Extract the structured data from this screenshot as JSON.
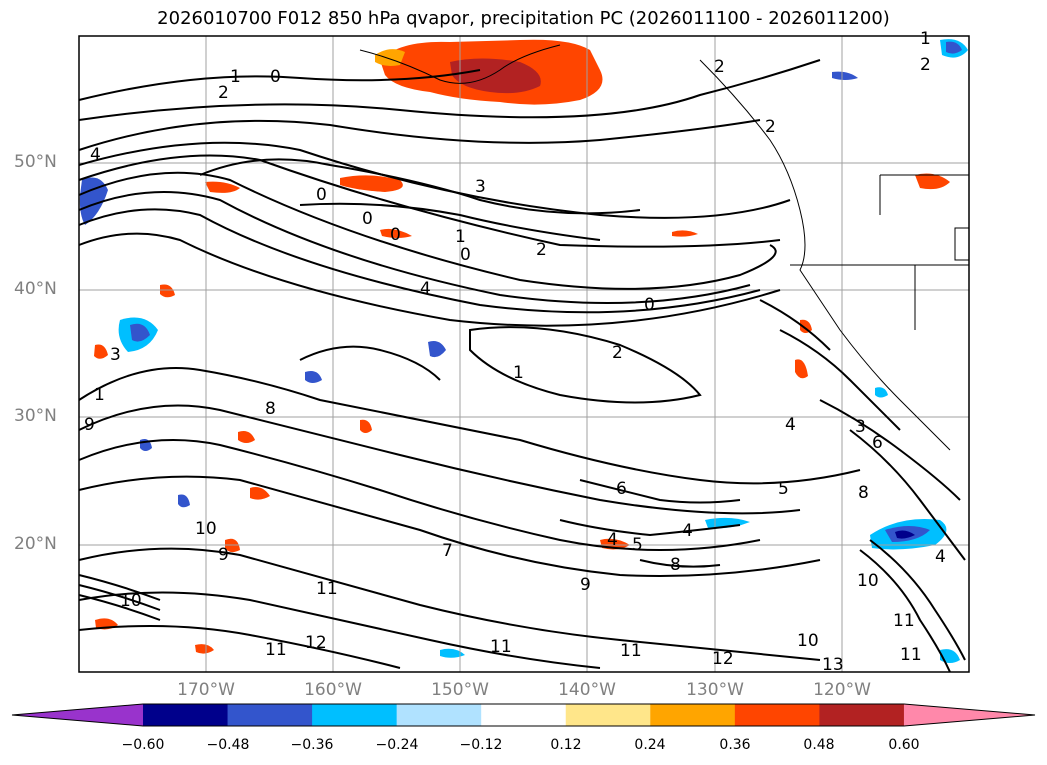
{
  "title": "2026010700 F012 850 hPa qvapor, precipitation PC (2026011100 - 2026011200)",
  "map": {
    "lat_labels": [
      "50°N",
      "40°N",
      "30°N",
      "20°N"
    ],
    "lon_labels": [
      "170°W",
      "160°W",
      "150°W",
      "140°W",
      "130°W",
      "120°W"
    ],
    "extent": {
      "lon_min": -179,
      "lon_max": -109,
      "lat_min": 10,
      "lat_max": 60
    },
    "contour_labels": [
      "0",
      "1",
      "2",
      "3",
      "4",
      "5",
      "6",
      "7",
      "8",
      "9",
      "10",
      "11",
      "12",
      "13"
    ]
  },
  "colorbar": {
    "ticks": [
      "−0.60",
      "−0.48",
      "−0.36",
      "−0.24",
      "−0.12",
      "0.12",
      "0.24",
      "0.36",
      "0.48",
      "0.60"
    ],
    "colors": [
      "#9933cc",
      "#00008b",
      "#3355cc",
      "#00bfff",
      "#b0e2ff",
      "#ffffff",
      "#ffe68a",
      "#ffa500",
      "#ff4500",
      "#b22222",
      "#ff88aa"
    ]
  },
  "colors": {
    "grid": "#a0a0a0",
    "contour": "#000000",
    "coast": "#000000"
  }
}
